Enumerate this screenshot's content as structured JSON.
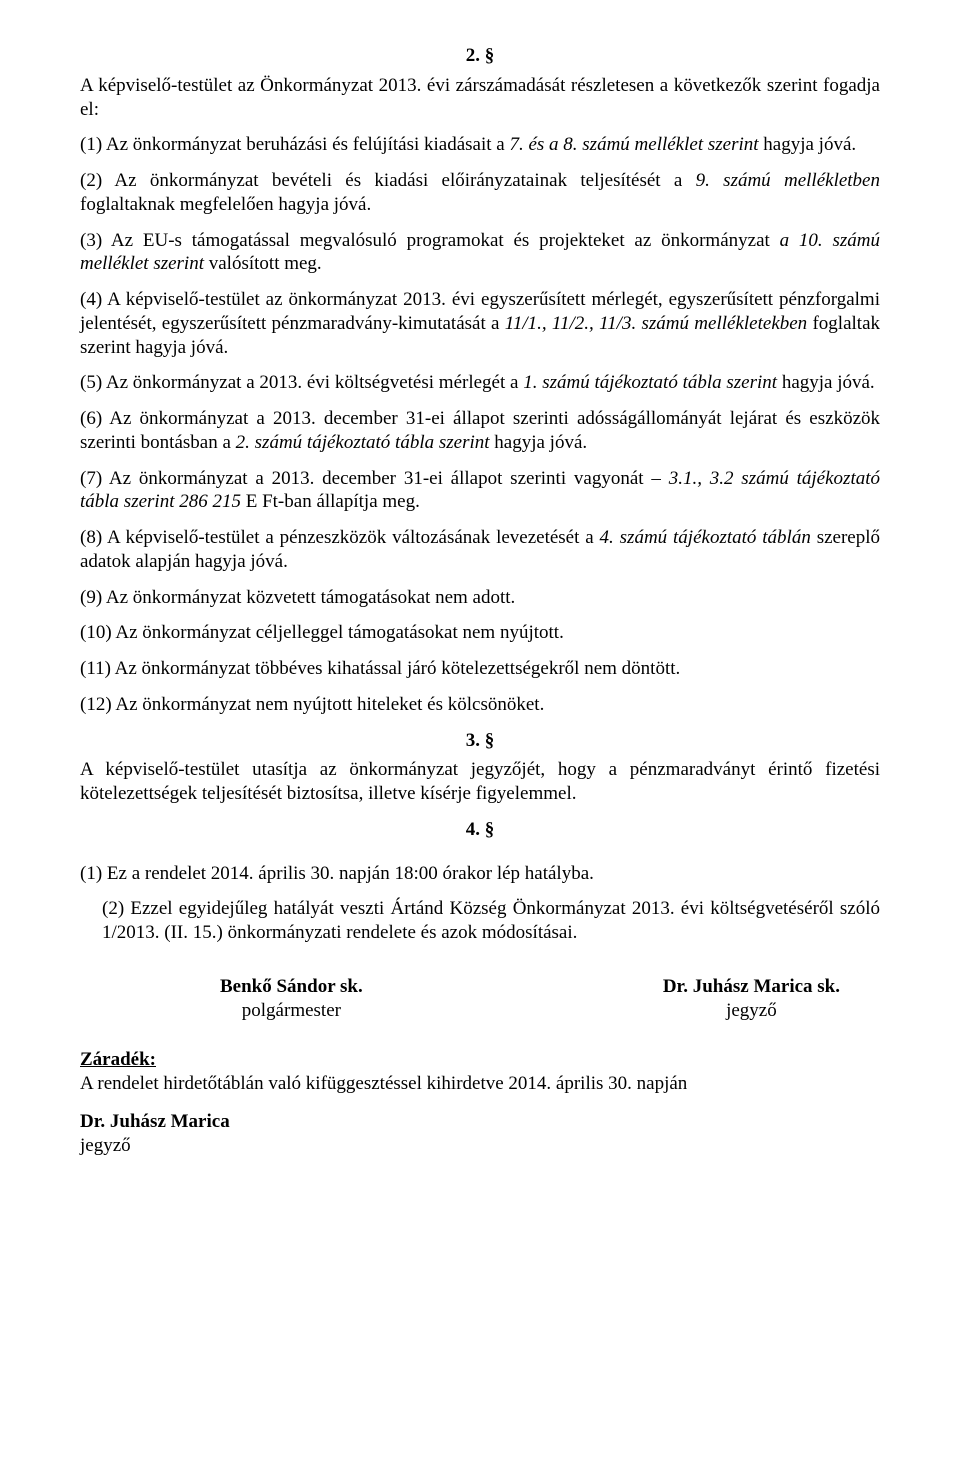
{
  "sections": {
    "s2": "2. §",
    "s3": "3. §",
    "s4": "4. §"
  },
  "s2_intro": "A képviselő-testület az Önkormányzat 2013. évi zárszámadását részletesen a következők szerint fogadja el:",
  "s2_p1_a": "(1) Az önkormányzat beruházási és felújítási kiadásait a ",
  "s2_p1_b": "7. és a 8. számú melléklet szerint",
  "s2_p1_c": " hagyja jóvá.",
  "s2_p2_a": "(2) Az önkormányzat bevételi és kiadási előirányzatainak teljesítését a ",
  "s2_p2_b": "9. számú mellékletben",
  "s2_p2_c": " foglaltaknak megfelelően hagyja jóvá.",
  "s2_p3_a": "(3) Az EU-s támogatással megvalósuló programokat és projekteket az önkormányzat ",
  "s2_p3_b": "a 10. számú melléklet szerint",
  "s2_p3_c": " valósított meg.",
  "s2_p4_a": "(4) A képviselő-testület az önkormányzat 2013. évi egyszerűsített mérlegét, egyszerűsített pénzforgalmi jelentését, egyszerűsített pénzmaradvány-kimutatását a ",
  "s2_p4_b": "11/1., 11/2., 11/3. számú mellékletekben",
  "s2_p4_c": " foglaltak szerint hagyja jóvá.",
  "s2_p5_a": "(5) Az önkormányzat a 2013. évi költségvetési mérlegét a ",
  "s2_p5_b": "1. számú tájékoztató tábla szerint",
  "s2_p5_c": " hagyja jóvá.",
  "s2_p6_a": "(6) Az önkormányzat a 2013. december 31-ei állapot szerinti adósságállományát lejárat és eszközök szerinti bontásban a ",
  "s2_p6_b": "2. számú tájékoztató tábla szerint",
  "s2_p6_c": " hagyja jóvá.",
  "s2_p7_a": "(7) Az önkormányzat a 2013. december 31-ei állapot szerinti vagyonát – ",
  "s2_p7_b": "3.1., 3.2 számú tájékoztató tábla szerint 286 215",
  "s2_p7_c": " E Ft-ban állapítja meg.",
  "s2_p8_a": "(8) A képviselő-testület a pénzeszközök változásának levezetését a ",
  "s2_p8_b": "4. számú tájékoztató táblán",
  "s2_p8_c": " szereplő adatok alapján hagyja jóvá.",
  "s2_p9": "(9) Az önkormányzat közvetett támogatásokat nem adott.",
  "s2_p10": "(10) Az önkormányzat céljelleggel támogatásokat nem nyújtott.",
  "s2_p11": "(11) Az önkormányzat többéves kihatással járó kötelezettségekről nem döntött.",
  "s2_p12": "(12) Az önkormányzat nem nyújtott hiteleket és kölcsönöket.",
  "s3_p": "A képviselő-testület utasítja az önkormányzat jegyzőjét, hogy a pénzmaradványt érintő fizetési kötelezettségek teljesítését biztosítsa, illetve kísérje figyelemmel.",
  "s4_p1": "(1) Ez a rendelet 2014. április 30. napján 18:00 órakor lép hatályba.",
  "s4_p2": "(2) Ezzel egyidejűleg hatályát veszti Ártánd Község Önkormányzat 2013. évi költségvetéséről szóló 1/2013. (II. 15.) önkormányzati rendelete és azok módosításai.",
  "signatures": {
    "left_name": "Benkő Sándor sk.",
    "left_title": "polgármester",
    "right_name": "Dr. Juhász Marica sk.",
    "right_title": "jegyző"
  },
  "zaradek": {
    "title": "Záradék:",
    "text": "A rendelet hirdetőtáblán való kifüggesztéssel kihirdetve 2014. április 30. napján",
    "signer_name": "Dr. Juhász Marica",
    "signer_title": "jegyző"
  }
}
